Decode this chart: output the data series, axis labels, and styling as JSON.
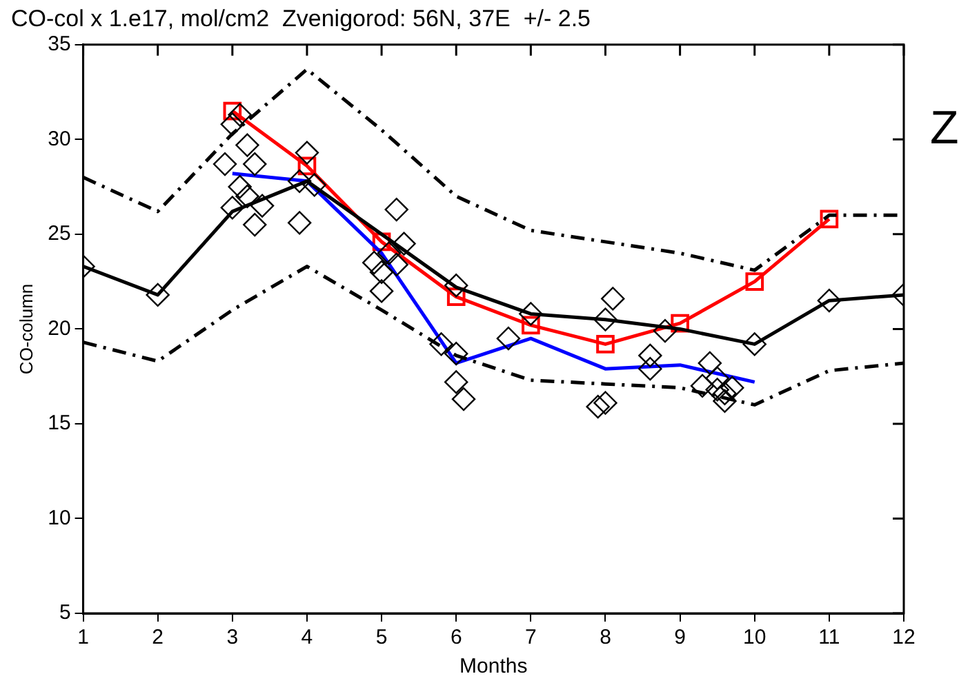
{
  "chart_data": {
    "type": "line",
    "title": "CO-col x 1.e17, mol/cm2  Zvenigorod: 56N, 37E  +/- 2.5",
    "xlabel": "Months",
    "ylabel": "CO-column",
    "annotations": [
      "Z"
    ],
    "xlim": [
      1,
      12
    ],
    "xticks": [
      1,
      2,
      3,
      4,
      5,
      6,
      7,
      8,
      9,
      10,
      11,
      12
    ],
    "ylim": [
      5,
      35
    ],
    "yticks": [
      5,
      10,
      15,
      20,
      25,
      30,
      35
    ],
    "grid": false,
    "legend": false,
    "series": [
      {
        "type": "scatter",
        "color": "#000000",
        "marker": "diamond",
        "x": [
          1,
          2,
          2.9,
          3,
          3.1,
          3.1,
          3.2,
          3.3,
          3.2,
          3.3,
          3.4,
          3,
          3.9,
          4,
          3.9,
          4.1,
          4.9,
          5,
          5,
          5.1,
          5.2,
          5.3,
          5.2,
          5.8,
          6,
          6,
          6.1,
          6,
          6.7,
          7,
          7.9,
          8,
          8.1,
          8,
          8.6,
          8.6,
          8.8,
          9,
          9.3,
          9.4,
          9.5,
          9.6,
          9.6,
          9.7,
          9.5,
          10,
          11,
          12
        ],
        "values": [
          23.3,
          21.8,
          28.7,
          30.8,
          31.3,
          27.5,
          29.7,
          28.7,
          27,
          25.5,
          26.5,
          26.4,
          27.8,
          29.3,
          25.6,
          27.6,
          23.5,
          23,
          22,
          24,
          26.3,
          24.5,
          23.4,
          19.2,
          18.7,
          17.2,
          16.3,
          22.3,
          19.5,
          20.8,
          15.9,
          16.1,
          21.6,
          20.5,
          18.6,
          17.9,
          19.9,
          null,
          17,
          18.2,
          17.4,
          16.6,
          16.2,
          16.9,
          16.8,
          19.2,
          21.5,
          21.8
        ]
      },
      {
        "type": "line",
        "color": "#000000",
        "marker": "none",
        "line_style": "dashed",
        "x": [
          1,
          2,
          3,
          4,
          5,
          6,
          7,
          8,
          9,
          10,
          11,
          12
        ],
        "values": [
          28,
          26.2,
          30.3,
          33.7,
          30.5,
          27,
          25.2,
          24.6,
          24,
          23.1,
          26,
          26
        ]
      },
      {
        "type": "line",
        "color": "#000000",
        "marker": "none",
        "line_style": "dashed",
        "x": [
          1,
          2,
          3,
          4,
          5,
          6,
          7,
          8,
          9,
          10,
          11,
          12
        ],
        "values": [
          19.3,
          18.3,
          21,
          23.3,
          21,
          18.6,
          17.3,
          17.1,
          16.9,
          16,
          17.8,
          18.2
        ]
      },
      {
        "type": "line",
        "color": "#000000",
        "marker": "none",
        "line_style": "solid",
        "x": [
          1,
          2,
          3,
          4,
          5,
          6,
          7,
          8,
          9,
          10,
          11,
          12
        ],
        "values": [
          23.3,
          21.8,
          26.2,
          27.8,
          25,
          22.2,
          20.8,
          20.5,
          20,
          19.2,
          21.5,
          21.8
        ]
      },
      {
        "type": "line",
        "color": "#0000ff",
        "marker": "none",
        "line_style": "solid",
        "x": [
          3,
          4,
          5,
          6,
          7,
          8,
          9,
          10
        ],
        "values": [
          28.2,
          27.8,
          24,
          18.2,
          19.5,
          17.9,
          18.1,
          17.2
        ]
      },
      {
        "type": "line",
        "color": "#ff0000",
        "marker": "square",
        "line_style": "solid",
        "x": [
          3,
          4,
          5,
          6,
          7,
          8,
          9,
          10,
          11
        ],
        "values": [
          31.5,
          28.6,
          24.6,
          21.7,
          20.2,
          19.2,
          20.3,
          22.5,
          25.8
        ]
      }
    ]
  }
}
